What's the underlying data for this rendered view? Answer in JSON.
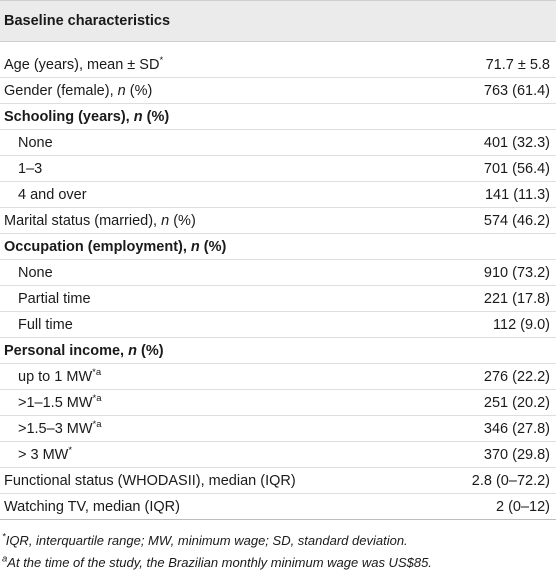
{
  "header": {
    "title": "Baseline characteristics"
  },
  "rows": [
    {
      "label": [
        "Age (years), mean ± SD",
        "*"
      ],
      "value": "71.7 ± 5.8"
    },
    {
      "label": [
        "Gender (female), ",
        "n",
        " (%)"
      ],
      "value": "763 (61.4)"
    },
    {
      "label": [
        "Schooling (years), ",
        "n",
        " (%)"
      ]
    },
    {
      "label": [
        "None"
      ],
      "value": "401 (32.3)"
    },
    {
      "label": [
        "1–3"
      ],
      "value": "701 (56.4)"
    },
    {
      "label": [
        "4 and over"
      ],
      "value": "141 (11.3)"
    },
    {
      "label": [
        "Marital status (married), ",
        "n",
        " (%)"
      ],
      "value": "574 (46.2)"
    },
    {
      "label": [
        "Occupation (employment), ",
        "n",
        " (%)"
      ]
    },
    {
      "label": [
        "None"
      ],
      "value": "910 (73.2)"
    },
    {
      "label": [
        "Partial time"
      ],
      "value": "221 (17.8)"
    },
    {
      "label": [
        "Full time"
      ],
      "value": "112 (9.0)"
    },
    {
      "label": [
        "Personal income, ",
        "n",
        " (%)"
      ]
    },
    {
      "label": [
        "up to 1 MW",
        "*a"
      ],
      "value": "276 (22.2)"
    },
    {
      "label": [
        ">1–1.5 MW",
        "*a"
      ],
      "value": "251 (20.2)"
    },
    {
      "label": [
        ">1.5–3 MW",
        "*a"
      ],
      "value": "346 (27.8)"
    },
    {
      "label": [
        "> 3 MW",
        "*"
      ],
      "value": "370 (29.8)"
    },
    {
      "label": [
        "Functional status (WHODASII), median (IQR)"
      ],
      "value": "2.8 (0–72.2)"
    },
    {
      "label": [
        "Watching TV, median (IQR)"
      ],
      "value": "2 (0–12)"
    }
  ],
  "footnotes": [
    [
      "*",
      "IQR, interquartile range; MW, minimum wage; SD, standard deviation."
    ],
    [
      "a",
      "At the time of the study, the Brazilian monthly minimum wage was US$85."
    ]
  ]
}
